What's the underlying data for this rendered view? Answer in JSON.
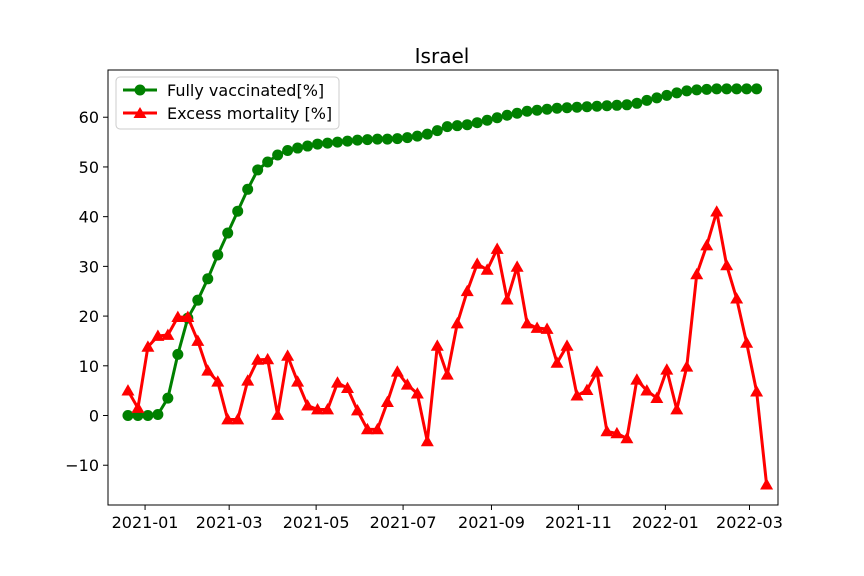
{
  "chart_data": {
    "type": "line",
    "title": "Israel",
    "xlabel": "",
    "ylabel": "",
    "xlim": [
      "2020-12-06",
      "2022-03-21"
    ],
    "ylim": [
      -18,
      69.5
    ],
    "x_ticks": [
      "2021-01-01",
      "2021-03-01",
      "2021-05-01",
      "2021-07-01",
      "2021-09-01",
      "2021-11-01",
      "2022-01-01",
      "2022-03-01"
    ],
    "x_tick_labels": [
      "2021-01",
      "2021-03",
      "2021-05",
      "2021-07",
      "2021-09",
      "2021-11",
      "2022-01",
      "2022-03"
    ],
    "y_ticks": [
      -10,
      0,
      10,
      20,
      30,
      40,
      50,
      60
    ],
    "y_tick_labels": [
      "−10",
      "0",
      "10",
      "20",
      "30",
      "40",
      "50",
      "60"
    ],
    "grid": false,
    "legend_position": "upper-left",
    "series": [
      {
        "name": "Fully vaccinated[%]",
        "color": "#008000",
        "marker": "circle",
        "points": [
          [
            "2020-12-20",
            0
          ],
          [
            "2020-12-27",
            0
          ],
          [
            "2021-01-03",
            0
          ],
          [
            "2021-01-10",
            0.2
          ],
          [
            "2021-01-17",
            3.5
          ],
          [
            "2021-01-24",
            12.3
          ],
          [
            "2021-01-31",
            19.6
          ],
          [
            "2021-02-07",
            23.2
          ],
          [
            "2021-02-14",
            27.5
          ],
          [
            "2021-02-21",
            32.3
          ],
          [
            "2021-02-28",
            36.7
          ],
          [
            "2021-03-07",
            41.1
          ],
          [
            "2021-03-14",
            45.5
          ],
          [
            "2021-03-21",
            49.4
          ],
          [
            "2021-03-28",
            51.0
          ],
          [
            "2021-04-04",
            52.4
          ],
          [
            "2021-04-11",
            53.3
          ],
          [
            "2021-04-18",
            53.8
          ],
          [
            "2021-04-25",
            54.2
          ],
          [
            "2021-05-02",
            54.6
          ],
          [
            "2021-05-09",
            54.8
          ],
          [
            "2021-05-16",
            55.0
          ],
          [
            "2021-05-23",
            55.2
          ],
          [
            "2021-05-30",
            55.4
          ],
          [
            "2021-06-06",
            55.5
          ],
          [
            "2021-06-13",
            55.6
          ],
          [
            "2021-06-20",
            55.6
          ],
          [
            "2021-06-27",
            55.7
          ],
          [
            "2021-07-04",
            55.9
          ],
          [
            "2021-07-11",
            56.2
          ],
          [
            "2021-07-18",
            56.6
          ],
          [
            "2021-07-25",
            57.3
          ],
          [
            "2021-08-01",
            58.1
          ],
          [
            "2021-08-08",
            58.3
          ],
          [
            "2021-08-15",
            58.5
          ],
          [
            "2021-08-22",
            58.9
          ],
          [
            "2021-08-29",
            59.4
          ],
          [
            "2021-09-05",
            59.9
          ],
          [
            "2021-09-12",
            60.4
          ],
          [
            "2021-09-19",
            60.8
          ],
          [
            "2021-09-26",
            61.2
          ],
          [
            "2021-10-03",
            61.4
          ],
          [
            "2021-10-10",
            61.6
          ],
          [
            "2021-10-17",
            61.8
          ],
          [
            "2021-10-24",
            61.9
          ],
          [
            "2021-10-31",
            62.0
          ],
          [
            "2021-11-07",
            62.1
          ],
          [
            "2021-11-14",
            62.2
          ],
          [
            "2021-11-21",
            62.3
          ],
          [
            "2021-11-28",
            62.4
          ],
          [
            "2021-12-05",
            62.5
          ],
          [
            "2021-12-12",
            62.8
          ],
          [
            "2021-12-19",
            63.4
          ],
          [
            "2021-12-26",
            63.9
          ],
          [
            "2022-01-02",
            64.4
          ],
          [
            "2022-01-09",
            64.9
          ],
          [
            "2022-01-16",
            65.3
          ],
          [
            "2022-01-23",
            65.5
          ],
          [
            "2022-01-30",
            65.6
          ],
          [
            "2022-02-06",
            65.7
          ],
          [
            "2022-02-13",
            65.7
          ],
          [
            "2022-02-20",
            65.7
          ],
          [
            "2022-02-27",
            65.7
          ],
          [
            "2022-03-06",
            65.7
          ]
        ]
      },
      {
        "name": "Excess mortality [%]",
        "color": "#ff0000",
        "marker": "triangle",
        "points": [
          [
            "2020-12-20",
            5.0
          ],
          [
            "2020-12-27",
            1.5
          ],
          [
            "2021-01-03",
            13.8
          ],
          [
            "2021-01-10",
            16.0
          ],
          [
            "2021-01-17",
            16.2
          ],
          [
            "2021-01-24",
            19.8
          ],
          [
            "2021-01-31",
            19.8
          ],
          [
            "2021-02-07",
            15.0
          ],
          [
            "2021-02-14",
            9.0
          ],
          [
            "2021-02-21",
            6.8
          ],
          [
            "2021-02-28",
            -0.8
          ],
          [
            "2021-03-07",
            -0.8
          ],
          [
            "2021-03-14",
            7.0
          ],
          [
            "2021-03-21",
            11.2
          ],
          [
            "2021-03-28",
            11.3
          ],
          [
            "2021-04-04",
            0.1
          ],
          [
            "2021-04-11",
            12.0
          ],
          [
            "2021-04-18",
            6.8
          ],
          [
            "2021-04-25",
            2.0
          ],
          [
            "2021-05-02",
            1.2
          ],
          [
            "2021-05-09",
            1.2
          ],
          [
            "2021-05-16",
            6.6
          ],
          [
            "2021-05-23",
            5.5
          ],
          [
            "2021-05-30",
            1.0
          ],
          [
            "2021-06-06",
            -2.8
          ],
          [
            "2021-06-13",
            -2.8
          ],
          [
            "2021-06-20",
            2.7
          ],
          [
            "2021-06-27",
            8.8
          ],
          [
            "2021-07-04",
            6.2
          ],
          [
            "2021-07-11",
            4.4
          ],
          [
            "2021-07-18",
            -5.2
          ],
          [
            "2021-07-25",
            14.0
          ],
          [
            "2021-08-01",
            8.2
          ],
          [
            "2021-08-08",
            18.5
          ],
          [
            "2021-08-15",
            25.0
          ],
          [
            "2021-08-22",
            30.5
          ],
          [
            "2021-08-29",
            29.3
          ],
          [
            "2021-09-05",
            33.5
          ],
          [
            "2021-09-12",
            23.3
          ],
          [
            "2021-09-19",
            29.9
          ],
          [
            "2021-09-26",
            18.5
          ],
          [
            "2021-10-03",
            17.6
          ],
          [
            "2021-10-10",
            17.4
          ],
          [
            "2021-10-17",
            10.6
          ],
          [
            "2021-10-24",
            14.0
          ],
          [
            "2021-10-31",
            4.0
          ],
          [
            "2021-11-07",
            5.1
          ],
          [
            "2021-11-14",
            8.8
          ],
          [
            "2021-11-21",
            -3.2
          ],
          [
            "2021-11-28",
            -3.6
          ],
          [
            "2021-12-05",
            -4.6
          ],
          [
            "2021-12-12",
            7.2
          ],
          [
            "2021-12-19",
            5.0
          ],
          [
            "2021-12-26",
            3.5
          ],
          [
            "2022-01-02",
            9.2
          ],
          [
            "2022-01-09",
            1.2
          ],
          [
            "2022-01-16",
            9.8
          ],
          [
            "2022-01-23",
            28.4
          ],
          [
            "2022-01-30",
            34.2
          ],
          [
            "2022-02-06",
            41.0
          ],
          [
            "2022-02-13",
            30.2
          ],
          [
            "2022-02-20",
            23.5
          ],
          [
            "2022-02-27",
            14.6
          ],
          [
            "2022-03-06",
            4.8
          ],
          [
            "2022-03-13",
            -13.9
          ]
        ]
      }
    ]
  }
}
